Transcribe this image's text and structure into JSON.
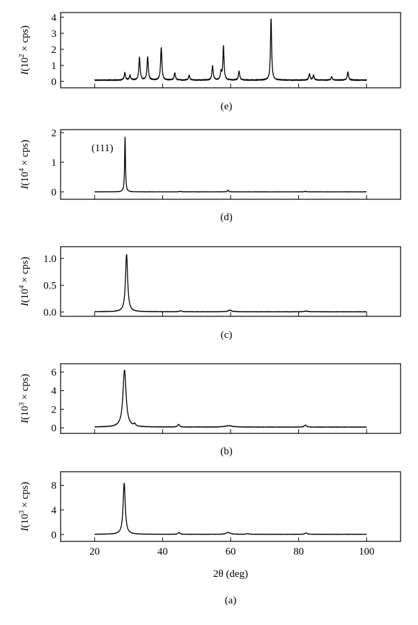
{
  "figure": {
    "background": "#ffffff",
    "line_color": "#000000"
  },
  "chart_data": [
    {
      "type": "line",
      "panel_label": "(e)",
      "ylabel_prefix": "I",
      "ylabel_base": "(10",
      "ylabel_exp": "2",
      "ylabel_suffix": " × cps)",
      "xlim": [
        10,
        110
      ],
      "ylim": [
        -0.4,
        4.3
      ],
      "yticks": [
        0,
        1,
        2,
        3,
        4
      ],
      "ytick_labels": [
        "0",
        "1",
        "2",
        "3",
        "4"
      ],
      "xticks": [
        20,
        40,
        60,
        80,
        100
      ],
      "xtick_labels": [],
      "annotation": "",
      "series": [
        {
          "x_range": [
            20,
            100
          ],
          "baseline": 0.08,
          "noise": 0.03,
          "peaks": [
            {
              "x": 28.9,
              "h": 0.45,
              "w": 0.22
            },
            {
              "x": 30.4,
              "h": 0.3,
              "w": 0.22
            },
            {
              "x": 33.2,
              "h": 1.4,
              "w": 0.22
            },
            {
              "x": 35.6,
              "h": 1.45,
              "w": 0.22
            },
            {
              "x": 39.6,
              "h": 2.05,
              "w": 0.22
            },
            {
              "x": 43.6,
              "h": 0.45,
              "w": 0.22
            },
            {
              "x": 47.8,
              "h": 0.3,
              "w": 0.22
            },
            {
              "x": 54.7,
              "h": 0.9,
              "w": 0.22
            },
            {
              "x": 57.2,
              "h": 0.5,
              "w": 0.22
            },
            {
              "x": 57.9,
              "h": 2.1,
              "w": 0.2
            },
            {
              "x": 62.5,
              "h": 0.55,
              "w": 0.22
            },
            {
              "x": 71.9,
              "h": 3.85,
              "w": 0.2
            },
            {
              "x": 83.2,
              "h": 0.4,
              "w": 0.22
            },
            {
              "x": 84.4,
              "h": 0.3,
              "w": 0.22
            },
            {
              "x": 89.7,
              "h": 0.2,
              "w": 0.22
            },
            {
              "x": 94.5,
              "h": 0.5,
              "w": 0.22
            }
          ]
        }
      ]
    },
    {
      "type": "line",
      "panel_label": "(d)",
      "ylabel_prefix": "I",
      "ylabel_base": "(10",
      "ylabel_exp": "4",
      "ylabel_suffix": " × cps)",
      "xlim": [
        10,
        110
      ],
      "ylim": [
        -0.25,
        2.1
      ],
      "yticks": [
        0,
        1,
        2
      ],
      "ytick_labels": [
        "0",
        "1",
        "2"
      ],
      "xticks": [
        20,
        40,
        60,
        80,
        100
      ],
      "xtick_labels": [],
      "annotation": "(111)",
      "series": [
        {
          "x_range": [
            20,
            100
          ],
          "baseline": 0.0,
          "noise": 0.004,
          "peaks": [
            {
              "x": 28.95,
              "h": 1.85,
              "w": 0.15
            },
            {
              "x": 45.2,
              "h": 0.02,
              "w": 0.25
            },
            {
              "x": 59.2,
              "h": 0.06,
              "w": 0.2
            },
            {
              "x": 82.0,
              "h": 0.02,
              "w": 0.25
            }
          ]
        }
      ]
    },
    {
      "type": "line",
      "panel_label": "(c)",
      "ylabel_prefix": "I",
      "ylabel_base": "(10",
      "ylabel_exp": "4",
      "ylabel_suffix": " × cps)",
      "xlim": [
        10,
        110
      ],
      "ylim": [
        -0.08,
        1.22
      ],
      "yticks": [
        0.0,
        0.5,
        1.0
      ],
      "ytick_labels": [
        "0.0",
        "0.5",
        "1.0"
      ],
      "xticks": [
        20,
        40,
        60,
        80,
        100
      ],
      "xtick_labels": [],
      "annotation": "",
      "series": [
        {
          "x_range": [
            20,
            100
          ],
          "baseline": 0.005,
          "noise": 0.003,
          "peaks": [
            {
              "x": 29.4,
              "h": 1.07,
              "w": 0.38
            },
            {
              "x": 45.3,
              "h": 0.02,
              "w": 0.4
            },
            {
              "x": 59.8,
              "h": 0.03,
              "w": 0.6
            },
            {
              "x": 82.2,
              "h": 0.015,
              "w": 0.4
            }
          ]
        }
      ]
    },
    {
      "type": "line",
      "panel_label": "(b)",
      "ylabel_prefix": "I",
      "ylabel_base": "(10",
      "ylabel_exp": "3",
      "ylabel_suffix": " × cps)",
      "xlim": [
        10,
        110
      ],
      "ylim": [
        -0.6,
        6.9
      ],
      "yticks": [
        0,
        2,
        4,
        6
      ],
      "ytick_labels": [
        "0",
        "2",
        "4",
        "6"
      ],
      "xticks": [
        20,
        40,
        60,
        80,
        100
      ],
      "xtick_labels": [],
      "annotation": "",
      "series": [
        {
          "x_range": [
            20,
            100
          ],
          "baseline": 0.08,
          "noise": 0.02,
          "peaks": [
            {
              "x": 28.8,
              "h": 6.15,
              "w": 0.55
            },
            {
              "x": 31.8,
              "h": 0.25,
              "w": 0.3
            },
            {
              "x": 44.7,
              "h": 0.3,
              "w": 0.3
            },
            {
              "x": 59.5,
              "h": 0.15,
              "w": 1.2
            },
            {
              "x": 82.0,
              "h": 0.2,
              "w": 0.4
            }
          ]
        }
      ]
    },
    {
      "type": "line",
      "panel_label": "(a)",
      "ylabel_prefix": "I",
      "ylabel_base": "(10",
      "ylabel_exp": "3",
      "ylabel_suffix": " × cps)",
      "xlabel": "2θ (deg)",
      "xlim": [
        10,
        110
      ],
      "ylim": [
        -1.1,
        10.2
      ],
      "yticks": [
        0,
        4,
        8
      ],
      "ytick_labels": [
        "0",
        "4",
        "8"
      ],
      "xticks": [
        20,
        40,
        60,
        80,
        100
      ],
      "xtick_labels": [
        "20",
        "40",
        "60",
        "80",
        "100"
      ],
      "annotation": "",
      "series": [
        {
          "x_range": [
            20,
            100
          ],
          "baseline": 0.05,
          "noise": 0.02,
          "peaks": [
            {
              "x": 28.7,
              "h": 8.3,
              "w": 0.38
            },
            {
              "x": 44.8,
              "h": 0.3,
              "w": 0.3
            },
            {
              "x": 59.3,
              "h": 0.3,
              "w": 0.7
            },
            {
              "x": 65.0,
              "h": 0.1,
              "w": 0.4
            },
            {
              "x": 82.2,
              "h": 0.2,
              "w": 0.4
            }
          ]
        }
      ]
    }
  ]
}
